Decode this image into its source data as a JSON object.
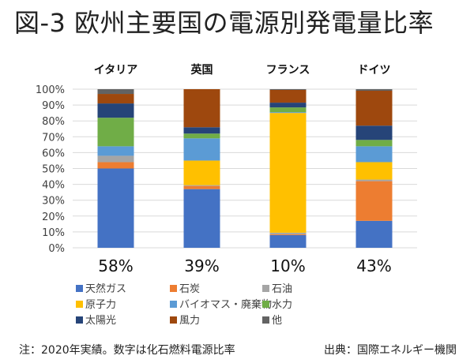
{
  "title": "図-3 欧州主要国の電源別発電量比率",
  "footnote": {
    "left": "注：2020年実績。数字は化石燃料電源比率",
    "right": "出典：国際エネルギー機関"
  },
  "chart_data": {
    "type": "bar",
    "stacked": true,
    "orientation": "vertical",
    "categories": [
      "イタリア",
      "英国",
      "フランス",
      "ドイツ"
    ],
    "category_labels_position": "top",
    "ylim": [
      0,
      100
    ],
    "ytick_values": [
      0,
      10,
      20,
      30,
      40,
      50,
      60,
      70,
      80,
      90,
      100
    ],
    "ytick_labels": [
      "0%",
      "10%",
      "20%",
      "30%",
      "40%",
      "50%",
      "60%",
      "70%",
      "80%",
      "90%",
      "100%"
    ],
    "series": [
      {
        "name": "天然ガス",
        "color": "#4472C4",
        "values": [
          50,
          37,
          8,
          17
        ]
      },
      {
        "name": "石炭",
        "color": "#ED7D31",
        "values": [
          4,
          2,
          0.5,
          25
        ]
      },
      {
        "name": "石油",
        "color": "#A5A5A5",
        "values": [
          4,
          0.5,
          1,
          1
        ]
      },
      {
        "name": "原子力",
        "color": "#FFC000",
        "values": [
          0,
          15.5,
          75.5,
          11
        ]
      },
      {
        "name": "バイオマス・廃棄物",
        "color": "#5B9BD5",
        "values": [
          6,
          14,
          0.5,
          10
        ]
      },
      {
        "name": "水力",
        "color": "#70AD47",
        "values": [
          18,
          3,
          3,
          4
        ]
      },
      {
        "name": "太陽光",
        "color": "#264478",
        "values": [
          9,
          4,
          3,
          9
        ]
      },
      {
        "name": "風力",
        "color": "#9E480E",
        "values": [
          6,
          24,
          8,
          22
        ]
      },
      {
        "name": "他",
        "color": "#636363",
        "values": [
          3,
          0,
          0.5,
          1
        ]
      }
    ],
    "annotations": [
      "58%",
      "39%",
      "10%",
      "43%"
    ],
    "legend_position": "bottom-left"
  }
}
